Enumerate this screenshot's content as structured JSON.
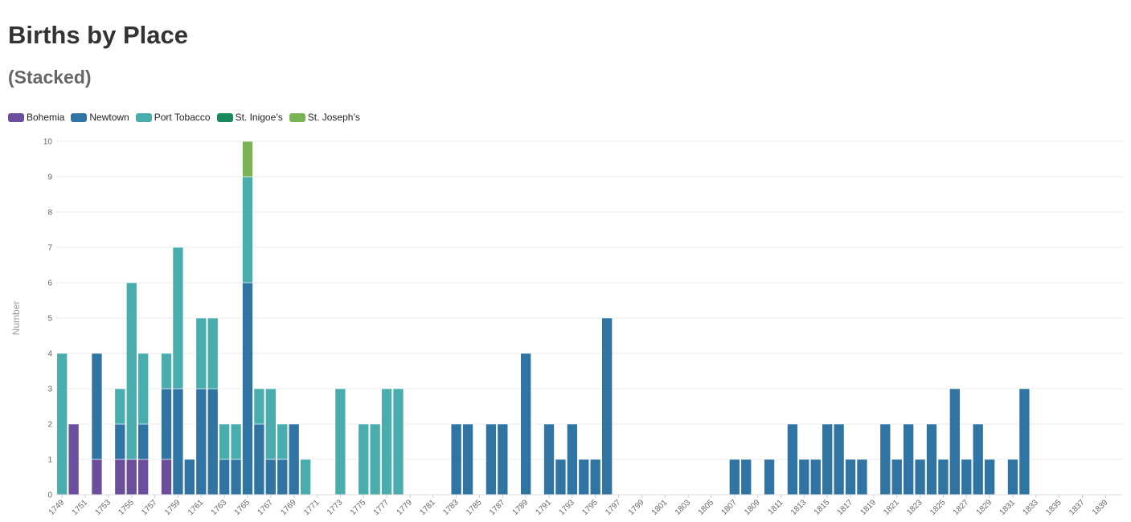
{
  "page": {
    "title": "Births by Place",
    "subtitle": "(Stacked)"
  },
  "chart_data": {
    "type": "bar",
    "stacked": true,
    "title": "Births by Place",
    "subtitle": "(Stacked)",
    "xlabel": "",
    "ylabel": "Number",
    "ylim": [
      0,
      10
    ],
    "y_ticks": [
      0,
      1,
      2,
      3,
      4,
      5,
      6,
      7,
      8,
      9,
      10
    ],
    "x_tick_step": 2,
    "legend_position": "top-left",
    "grid": true,
    "categories": [
      "1749",
      "1750",
      "1751",
      "1752",
      "1753",
      "1754",
      "1755",
      "1756",
      "1757",
      "1758",
      "1759",
      "1760",
      "1761",
      "1762",
      "1763",
      "1764",
      "1765",
      "1766",
      "1767",
      "1768",
      "1769",
      "1770",
      "1771",
      "1772",
      "1773",
      "1774",
      "1775",
      "1776",
      "1777",
      "1778",
      "1779",
      "1780",
      "1781",
      "1782",
      "1783",
      "1784",
      "1785",
      "1786",
      "1787",
      "1788",
      "1789",
      "1790",
      "1791",
      "1792",
      "1793",
      "1794",
      "1795",
      "1796",
      "1797",
      "1798",
      "1799",
      "1800",
      "1801",
      "1802",
      "1803",
      "1804",
      "1805",
      "1806",
      "1807",
      "1808",
      "1809",
      "1810",
      "1811",
      "1812",
      "1813",
      "1814",
      "1815",
      "1816",
      "1817",
      "1818",
      "1819",
      "1820",
      "1821",
      "1822",
      "1823",
      "1824",
      "1825",
      "1826",
      "1827",
      "1828",
      "1829",
      "1830",
      "1831",
      "1832",
      "1833",
      "1834",
      "1835",
      "1836",
      "1837",
      "1838",
      "1839",
      "1840"
    ],
    "series": [
      {
        "name": "Bohemia",
        "color": "#6b4f9e",
        "values": [
          0,
          2,
          0,
          1,
          0,
          1,
          1,
          1,
          0,
          1,
          0,
          0,
          0,
          0,
          0,
          0,
          0,
          0,
          0,
          0,
          0,
          0,
          0,
          0,
          0,
          0,
          0,
          0,
          0,
          0,
          0,
          0,
          0,
          0,
          0,
          0,
          0,
          0,
          0,
          0,
          0,
          0,
          0,
          0,
          0,
          0,
          0,
          0,
          0,
          0,
          0,
          0,
          0,
          0,
          0,
          0,
          0,
          0,
          0,
          0,
          0,
          0,
          0,
          0,
          0,
          0,
          0,
          0,
          0,
          0,
          0,
          0,
          0,
          0,
          0,
          0,
          0,
          0,
          0,
          0,
          0,
          0,
          0,
          0,
          0,
          0,
          0,
          0,
          0,
          0,
          0,
          0
        ]
      },
      {
        "name": "Newtown",
        "color": "#2f74a3",
        "values": [
          0,
          0,
          0,
          3,
          0,
          1,
          0,
          1,
          0,
          2,
          3,
          1,
          3,
          3,
          1,
          1,
          6,
          2,
          1,
          1,
          2,
          0,
          0,
          0,
          0,
          0,
          0,
          0,
          0,
          0,
          0,
          0,
          0,
          0,
          2,
          2,
          0,
          2,
          2,
          0,
          4,
          0,
          2,
          1,
          2,
          1,
          1,
          5,
          0,
          0,
          0,
          0,
          0,
          0,
          0,
          0,
          0,
          0,
          1,
          1,
          0,
          1,
          0,
          2,
          1,
          1,
          2,
          2,
          1,
          1,
          0,
          2,
          1,
          2,
          1,
          2,
          1,
          3,
          1,
          2,
          1,
          0,
          1,
          3,
          0,
          0,
          0,
          0,
          0,
          0,
          0,
          0
        ]
      },
      {
        "name": "Port Tobacco",
        "color": "#4aadad",
        "values": [
          4,
          0,
          0,
          0,
          0,
          1,
          5,
          2,
          0,
          1,
          4,
          0,
          2,
          2,
          1,
          1,
          3,
          1,
          2,
          1,
          0,
          1,
          0,
          0,
          3,
          0,
          2,
          2,
          3,
          3,
          0,
          0,
          0,
          0,
          0,
          0,
          0,
          0,
          0,
          0,
          0,
          0,
          0,
          0,
          0,
          0,
          0,
          0,
          0,
          0,
          0,
          0,
          0,
          0,
          0,
          0,
          0,
          0,
          0,
          0,
          0,
          0,
          0,
          0,
          0,
          0,
          0,
          0,
          0,
          0,
          0,
          0,
          0,
          0,
          0,
          0,
          0,
          0,
          0,
          0,
          0,
          0,
          0,
          0,
          0,
          0,
          0,
          0,
          0,
          0,
          0,
          0
        ]
      },
      {
        "name": "St. Inigoe’s",
        "color": "#1a8a5c",
        "values": [
          0,
          0,
          0,
          0,
          0,
          0,
          0,
          0,
          0,
          0,
          0,
          0,
          0,
          0,
          0,
          0,
          0,
          0,
          0,
          0,
          0,
          0,
          0,
          0,
          0,
          0,
          0,
          0,
          0,
          0,
          0,
          0,
          0,
          0,
          0,
          0,
          0,
          0,
          0,
          0,
          0,
          0,
          0,
          0,
          0,
          0,
          0,
          0,
          0,
          0,
          0,
          0,
          0,
          0,
          0,
          0,
          0,
          0,
          0,
          0,
          0,
          0,
          0,
          0,
          0,
          0,
          0,
          0,
          0,
          0,
          0,
          0,
          0,
          0,
          0,
          0,
          0,
          0,
          0,
          0,
          0,
          0,
          0,
          0,
          0,
          0,
          0,
          0,
          0,
          0,
          0,
          0
        ]
      },
      {
        "name": "St. Joseph’s",
        "color": "#7ab353",
        "values": [
          0,
          0,
          0,
          0,
          0,
          0,
          0,
          0,
          0,
          0,
          0,
          0,
          0,
          0,
          0,
          0,
          1,
          0,
          0,
          0,
          0,
          0,
          0,
          0,
          0,
          0,
          0,
          0,
          0,
          0,
          0,
          0,
          0,
          0,
          0,
          0,
          0,
          0,
          0,
          0,
          0,
          0,
          0,
          0,
          0,
          0,
          0,
          0,
          0,
          0,
          0,
          0,
          0,
          0,
          0,
          0,
          0,
          0,
          0,
          0,
          0,
          0,
          0,
          0,
          0,
          0,
          0,
          0,
          0,
          0,
          0,
          0,
          0,
          0,
          0,
          0,
          0,
          0,
          0,
          0,
          0,
          0,
          0,
          0,
          0,
          0,
          0,
          0,
          0,
          0,
          0,
          0
        ]
      }
    ]
  }
}
